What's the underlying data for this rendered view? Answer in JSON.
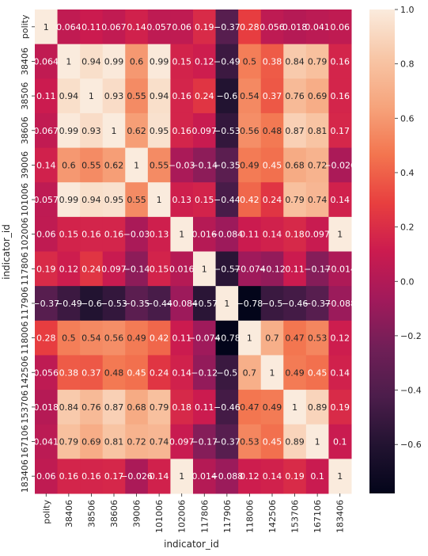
{
  "chart_data": {
    "type": "heatmap",
    "xlabel": "indicator_id",
    "ylabel": "indicator_id",
    "x_categories": [
      "polity",
      "38406",
      "38506",
      "38606",
      "39006",
      "101006",
      "102006",
      "117806",
      "117906",
      "118006",
      "142506",
      "153706",
      "167106",
      "183406"
    ],
    "y_categories": [
      "polity",
      "38406",
      "38506",
      "38606",
      "39006",
      "101006",
      "102006",
      "117806",
      "117906",
      "118006",
      "142506",
      "153706",
      "167106",
      "183406"
    ],
    "values": [
      [
        1,
        0.064,
        0.11,
        0.067,
        0.14,
        0.057,
        0.06,
        0.19,
        -0.37,
        0.28,
        0.056,
        0.018,
        0.041,
        0.06
      ],
      [
        0.064,
        1,
        0.94,
        0.99,
        0.6,
        0.99,
        0.15,
        0.12,
        -0.49,
        0.5,
        0.38,
        0.84,
        0.79,
        0.16
      ],
      [
        0.11,
        0.94,
        1,
        0.93,
        0.55,
        0.94,
        0.16,
        0.24,
        -0.6,
        0.54,
        0.37,
        0.76,
        0.69,
        0.16
      ],
      [
        0.067,
        0.99,
        0.93,
        1,
        0.62,
        0.95,
        0.16,
        0.097,
        -0.53,
        0.56,
        0.48,
        0.87,
        0.81,
        0.17
      ],
      [
        0.14,
        0.6,
        0.55,
        0.62,
        1,
        0.55,
        -0.03,
        -0.14,
        -0.35,
        0.49,
        0.45,
        0.68,
        0.72,
        -0.026
      ],
      [
        0.057,
        0.99,
        0.94,
        0.95,
        0.55,
        1,
        0.13,
        0.15,
        -0.44,
        0.42,
        0.24,
        0.79,
        0.74,
        0.14
      ],
      [
        0.06,
        0.15,
        0.16,
        0.16,
        -0.03,
        0.13,
        1,
        0.016,
        -0.084,
        0.11,
        0.14,
        0.18,
        0.097,
        1
      ],
      [
        0.19,
        0.12,
        0.24,
        0.097,
        -0.14,
        0.15,
        0.016,
        1,
        -0.57,
        -0.074,
        -0.12,
        0.11,
        -0.17,
        -0.014
      ],
      [
        -0.37,
        -0.49,
        -0.6,
        -0.53,
        -0.35,
        -0.44,
        -0.084,
        -0.57,
        1,
        -0.78,
        -0.5,
        -0.46,
        -0.37,
        -0.088
      ],
      [
        0.28,
        0.5,
        0.54,
        0.56,
        0.49,
        0.42,
        0.11,
        -0.074,
        -0.78,
        1,
        0.7,
        0.47,
        0.53,
        0.12
      ],
      [
        0.056,
        0.38,
        0.37,
        0.48,
        0.45,
        0.24,
        0.14,
        -0.12,
        -0.5,
        0.7,
        1,
        0.49,
        0.45,
        0.14
      ],
      [
        0.018,
        0.84,
        0.76,
        0.87,
        0.68,
        0.79,
        0.18,
        0.11,
        -0.46,
        0.47,
        0.49,
        1,
        0.89,
        0.19
      ],
      [
        0.041,
        0.79,
        0.69,
        0.81,
        0.72,
        0.74,
        0.097,
        -0.17,
        -0.37,
        0.53,
        0.45,
        0.89,
        1,
        0.1
      ],
      [
        0.06,
        0.16,
        0.16,
        0.17,
        -0.026,
        0.14,
        1,
        0.014,
        -0.088,
        0.12,
        0.14,
        0.19,
        0.1,
        1
      ]
    ],
    "vmin": -0.78,
    "vmax": 1.0,
    "colormap": "rocket",
    "annotations": "cell values",
    "colorbar": {
      "ticks": [
        1.0,
        0.8,
        0.6,
        0.4,
        0.2,
        0.0,
        -0.2,
        -0.4,
        -0.6
      ],
      "tick_labels": [
        "1.0",
        "0.8",
        "0.6",
        "0.4",
        "0.2",
        "0.0",
        "−0.2",
        "−0.4",
        "−0.6"
      ],
      "placement": "right"
    },
    "grid": false
  }
}
